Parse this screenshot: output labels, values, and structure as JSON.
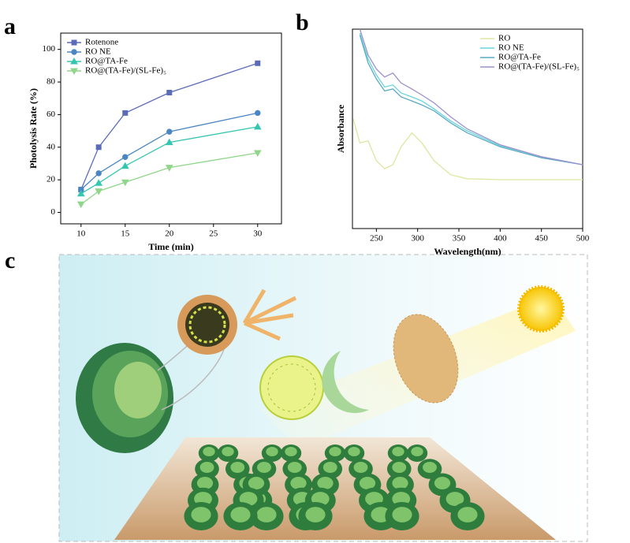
{
  "chart_data": [
    {
      "type": "line",
      "panel_label": "a",
      "x_label": "Time (min)",
      "y_label": "Photolysis Rate (%)",
      "x": [
        10,
        12,
        15,
        20,
        30
      ],
      "series": [
        {
          "name": "Rotenone",
          "color": "#5b6bb8",
          "marker": "square",
          "values": [
            14,
            40,
            61,
            73.5,
            91.5
          ]
        },
        {
          "name": "RO NE",
          "color": "#4a86c4",
          "marker": "circle",
          "values": [
            14,
            24,
            34,
            49.5,
            61
          ]
        },
        {
          "name": "RO@TA-Fe",
          "color": "#35c6b0",
          "marker": "triangle-up",
          "values": [
            11.5,
            18,
            28.5,
            43,
            52.5
          ]
        },
        {
          "name": "RO@(TA-Fe)/(SL-Fe)₅",
          "color": "#8fd68a",
          "marker": "triangle-down",
          "values": [
            5,
            13,
            18.5,
            27.5,
            36.5
          ]
        }
      ],
      "xlim": [
        7.7,
        32.7
      ],
      "xticks": [
        10,
        15,
        20,
        25,
        30
      ],
      "ylim": [
        -7,
        110
      ],
      "yticks": [
        0,
        20,
        40,
        60,
        80,
        100
      ],
      "legend": "upper left"
    },
    {
      "type": "line",
      "panel_label": "b",
      "x_label": "Wavelength(nm)",
      "y_label": "Absorbance",
      "x": [
        222,
        230,
        240,
        250,
        260,
        270,
        280,
        293,
        305,
        320,
        340,
        360,
        400,
        450,
        500
      ],
      "series": [
        {
          "name": "RO",
          "color": "#dfe6a0",
          "values": [
            0.55,
            0.43,
            0.44,
            0.34,
            0.3,
            0.32,
            0.41,
            0.48,
            0.43,
            0.34,
            0.27,
            0.25,
            0.245,
            0.245,
            0.245
          ]
        },
        {
          "name": "RO NE",
          "color": "#6ad6d8",
          "values": [
            null,
            0.98,
            0.85,
            0.77,
            0.71,
            0.72,
            0.68,
            0.66,
            0.64,
            0.6,
            0.54,
            0.49,
            0.415,
            0.36,
            0.32
          ]
        },
        {
          "name": "RO@TA-Fe",
          "color": "#5aaac4",
          "values": [
            null,
            0.97,
            0.83,
            0.75,
            0.69,
            0.7,
            0.66,
            0.64,
            0.62,
            0.59,
            0.53,
            0.48,
            0.41,
            0.355,
            0.32
          ]
        },
        {
          "name": "RO@(TA-Fe)/(SL-Fe)₅",
          "color": "#9d90cc",
          "values": [
            null,
            1.0,
            0.87,
            0.8,
            0.76,
            0.78,
            0.73,
            0.7,
            0.67,
            0.63,
            0.56,
            0.5,
            0.42,
            0.36,
            0.32
          ]
        }
      ],
      "xlim": [
        221,
        500
      ],
      "xticks": [
        250,
        300,
        350,
        400,
        450,
        500
      ],
      "ylim": [
        0,
        1
      ],
      "legend": "upper right"
    }
  ],
  "illustration": {
    "panel_label": "c"
  }
}
